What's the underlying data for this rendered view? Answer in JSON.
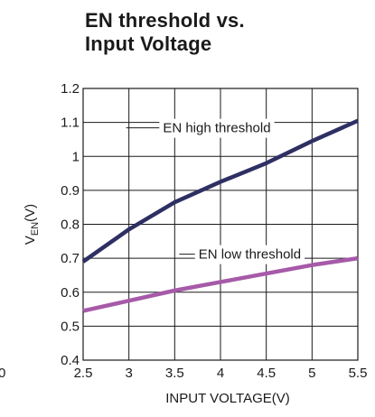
{
  "chart_data": {
    "type": "line",
    "title": [
      "EN threshold vs.",
      "Input Voltage"
    ],
    "xlabel": "INPUT VOLTAGE(V)",
    "ylabel_main": "V",
    "ylabel_sub": "EN",
    "ylabel_unit": "(V)",
    "xlim": [
      2.5,
      5.5
    ],
    "ylim": [
      0.4,
      1.2
    ],
    "xticks": [
      2.5,
      3,
      3.5,
      4,
      4.5,
      5,
      5.5
    ],
    "xtick_labels": [
      "2.5",
      "3",
      "3.5",
      "4",
      "4.5",
      "5",
      "5.5"
    ],
    "yticks": [
      0.4,
      0.5,
      0.6,
      0.7,
      0.8,
      0.9,
      1,
      1.1,
      1.2
    ],
    "ytick_labels": [
      "0.4",
      "0.5",
      "0.6",
      "0.7",
      "0.8",
      "0.9",
      "1",
      "1.1",
      "1.2"
    ],
    "grid": true,
    "edge_text": "0",
    "series": [
      {
        "name": "EN high threshold",
        "color": "#2e2f63",
        "x": [
          2.5,
          3.0,
          3.5,
          4.0,
          4.5,
          5.0,
          5.5
        ],
        "y": [
          0.69,
          0.785,
          0.865,
          0.925,
          0.98,
          1.045,
          1.105
        ]
      },
      {
        "name": "EN low threshold",
        "color": "#a65aa8",
        "x": [
          2.5,
          3.0,
          3.5,
          4.0,
          4.5,
          5.0,
          5.5
        ],
        "y": [
          0.545,
          0.575,
          0.605,
          0.63,
          0.655,
          0.68,
          0.7
        ]
      }
    ]
  }
}
